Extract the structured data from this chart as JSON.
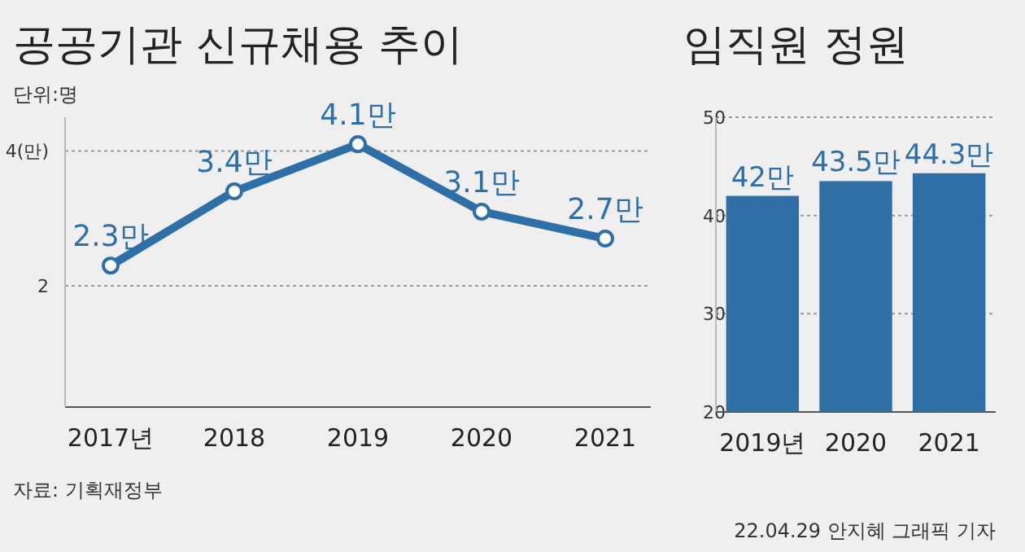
{
  "chart_data": [
    {
      "type": "line",
      "title": "공공기관 신규채용 추이",
      "subtitle": "단위:명",
      "categories": [
        "2017년",
        "2018",
        "2019",
        "2020",
        "2021"
      ],
      "series": [
        {
          "color": "#2e6fa8",
          "values": [
            2.3,
            3.4,
            4.1,
            3.1,
            2.7
          ],
          "value_labels": [
            "2.3만",
            "3.4만",
            "4.1만",
            "3.1만",
            "2.7만"
          ]
        }
      ],
      "ylim": [
        0.2,
        4.5
      ],
      "yticks": [
        2,
        {
          "value": 4,
          "label": "4(만)"
        }
      ],
      "grid": "y",
      "marker": "circle",
      "line_style": "solid",
      "annotations": [
        "자료: 기획재정부"
      ]
    },
    {
      "type": "bar",
      "title": "임직원 정원",
      "categories": [
        "2019년",
        "2020",
        "2021"
      ],
      "values": [
        42,
        43.5,
        44.3
      ],
      "value_labels": [
        "42만",
        "43.5만",
        "44.3만"
      ],
      "color": "#2e6fa8",
      "ylim": [
        20,
        50
      ],
      "yticks": [
        20,
        30,
        40,
        50
      ],
      "grid": "y",
      "annotations": [
        "22.04.29 안지혜 그래픽 기자"
      ]
    }
  ]
}
